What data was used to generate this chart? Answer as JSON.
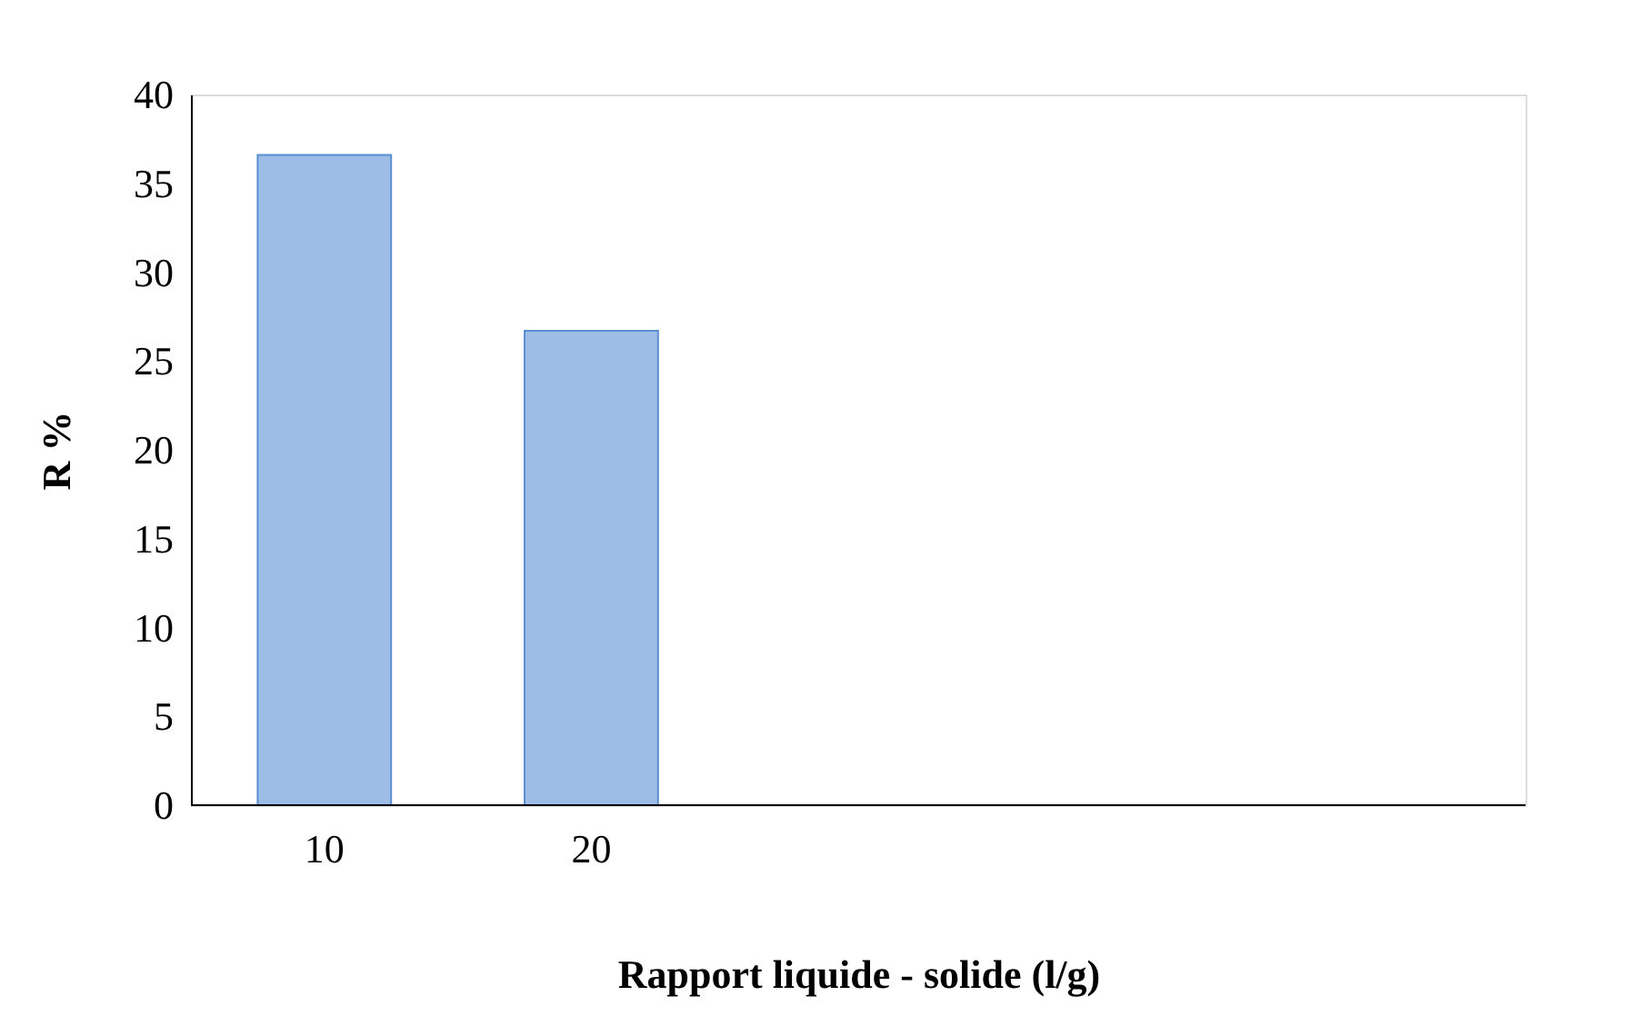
{
  "chart_data": {
    "type": "bar",
    "categories": [
      "10",
      "20",
      null,
      null,
      null
    ],
    "values": [
      36.6,
      26.7,
      null,
      null,
      null
    ],
    "color": "#9dbde6",
    "xlabel": "Rapport liquide - solide   (l/g)",
    "ylabel": "R %",
    "ylim": [
      0,
      40
    ],
    "yticks": [
      0,
      5,
      10,
      15,
      20,
      25,
      30,
      35,
      40
    ],
    "grid": false
  }
}
